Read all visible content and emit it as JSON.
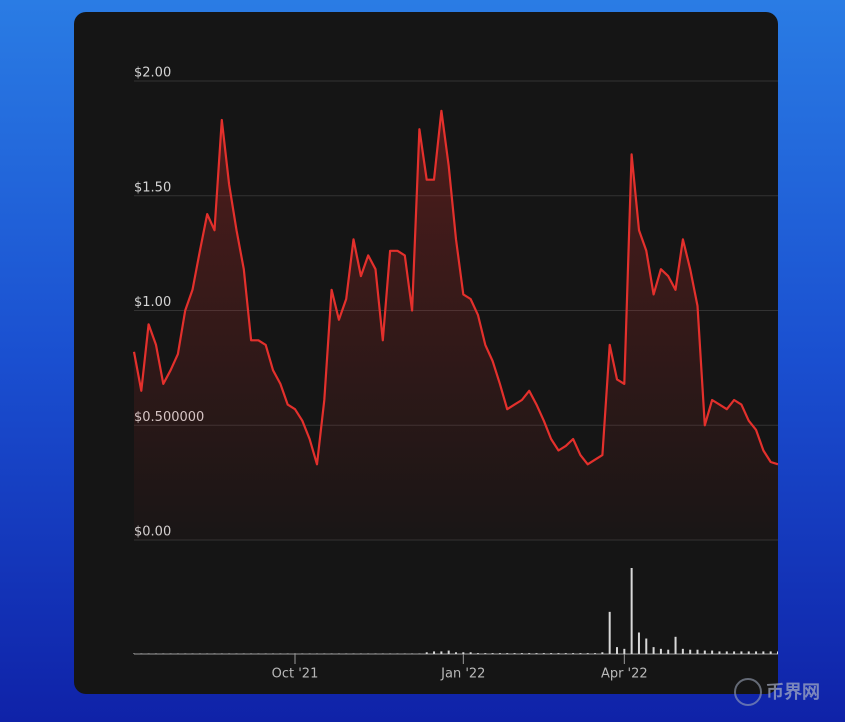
{
  "chart_data": {
    "type": "line",
    "categories": [
      null,
      null,
      null,
      null,
      null,
      null,
      null,
      null,
      null,
      null,
      null,
      null,
      null,
      null,
      null,
      null,
      null,
      null,
      null,
      null,
      null,
      null,
      "Oct '21",
      null,
      null,
      null,
      null,
      null,
      null,
      null,
      null,
      null,
      null,
      null,
      null,
      null,
      null,
      null,
      null,
      null,
      null,
      null,
      null,
      null,
      null,
      "Jan '22",
      null,
      null,
      null,
      null,
      null,
      null,
      null,
      null,
      null,
      null,
      null,
      null,
      null,
      null,
      null,
      null,
      null,
      null,
      null,
      null,
      null,
      "Apr '22",
      null,
      null,
      null,
      null,
      null,
      null,
      null,
      null,
      null,
      null,
      null,
      null,
      null,
      null,
      null,
      null,
      null,
      null,
      null,
      null,
      null
    ],
    "series": [
      {
        "color": "#e3302c",
        "values": [
          0.82,
          0.65,
          0.94,
          0.85,
          0.68,
          0.74,
          0.81,
          1.0,
          1.09,
          1.26,
          1.42,
          1.35,
          1.83,
          1.55,
          1.35,
          1.18,
          0.87,
          0.87,
          0.85,
          0.74,
          0.68,
          0.59,
          0.57,
          0.52,
          0.44,
          0.33,
          0.61,
          1.09,
          0.96,
          1.05,
          1.31,
          1.15,
          1.24,
          1.18,
          0.87,
          1.26,
          1.26,
          1.24,
          1.0,
          1.79,
          1.57,
          1.57,
          1.87,
          1.63,
          1.31,
          1.07,
          1.05,
          0.98,
          0.85,
          0.78,
          0.68,
          0.57,
          0.59,
          0.61,
          0.65,
          0.59,
          0.52,
          0.44,
          0.39,
          0.41,
          0.44,
          0.37,
          0.33,
          0.35,
          0.37,
          0.85,
          0.7,
          0.68,
          1.68,
          1.35,
          1.26,
          1.07,
          1.18,
          1.15,
          1.09,
          1.31,
          1.18,
          1.02,
          0.5,
          0.61,
          0.59,
          0.57,
          0.61,
          0.59,
          0.52,
          0.48,
          0.39,
          0.34,
          0.33
        ]
      },
      {
        "color": "#d8d8d8",
        "axis": "y2",
        "values": [
          0.5,
          0.5,
          0.5,
          0.5,
          0.5,
          0.5,
          0.5,
          0.5,
          0.5,
          0.5,
          0.5,
          0.5,
          0.5,
          0.5,
          0.5,
          0.5,
          0.5,
          0.5,
          0.5,
          0.5,
          0.5,
          0.5,
          0.5,
          0.5,
          0.5,
          0.5,
          0.5,
          0.5,
          0.5,
          0.5,
          0.5,
          0.5,
          0.5,
          0.5,
          0.5,
          0.5,
          0.5,
          0.5,
          0.5,
          0.5,
          2,
          3,
          3,
          4,
          2,
          2,
          2,
          1,
          1,
          1,
          1,
          1,
          1,
          1,
          1,
          1,
          1,
          1,
          1,
          1,
          1,
          1,
          1,
          1,
          2,
          49,
          8,
          6,
          100,
          25,
          18,
          8,
          6,
          5,
          20,
          6,
          5,
          5,
          4,
          4,
          3,
          3,
          3,
          3,
          3,
          3,
          3,
          3,
          3
        ]
      }
    ],
    "ylim": [
      0,
      2
    ],
    "y2lim": [
      0,
      100
    ],
    "yticks": [
      {
        "value": 0,
        "label": "$0.00"
      },
      {
        "value": 0.5,
        "label": "$0.500000"
      },
      {
        "value": 1,
        "label": "$1.00"
      },
      {
        "value": 1.5,
        "label": "$1.50"
      },
      {
        "value": 2,
        "label": "$2.00"
      }
    ],
    "grid": true
  },
  "watermark": "币界网"
}
